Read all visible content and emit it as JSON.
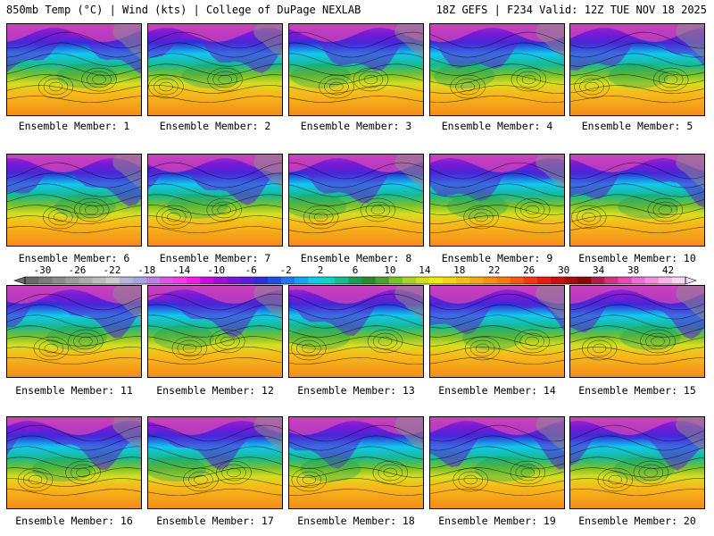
{
  "header": {
    "left": "850mb Temp (°C) | Wind (kts) | College of DuPage NEXLAB",
    "right": "18Z GEFS | F234 Valid: 12Z TUE NOV 18 2025"
  },
  "chart_data": {
    "type": "small-multiples-heatmap",
    "title": "850mb Temp (°C) | Wind (kts)",
    "source": "College of DuPage NEXLAB",
    "model": "18Z GEFS",
    "forecast": "F234 Valid: 12Z TUE NOV 18 2025",
    "panels": [
      {
        "label": "Ensemble Member: 1"
      },
      {
        "label": "Ensemble Member: 2"
      },
      {
        "label": "Ensemble Member: 3"
      },
      {
        "label": "Ensemble Member: 4"
      },
      {
        "label": "Ensemble Member: 5"
      },
      {
        "label": "Ensemble Member: 6"
      },
      {
        "label": "Ensemble Member: 7"
      },
      {
        "label": "Ensemble Member: 8"
      },
      {
        "label": "Ensemble Member: 9"
      },
      {
        "label": "Ensemble Member: 10"
      },
      {
        "label": "Ensemble Member: 11"
      },
      {
        "label": "Ensemble Member: 12"
      },
      {
        "label": "Ensemble Member: 13"
      },
      {
        "label": "Ensemble Member: 14"
      },
      {
        "label": "Ensemble Member: 15"
      },
      {
        "label": "Ensemble Member: 16"
      },
      {
        "label": "Ensemble Member: 17"
      },
      {
        "label": "Ensemble Member: 18"
      },
      {
        "label": "Ensemble Member: 19"
      },
      {
        "label": "Ensemble Member: 20"
      }
    ],
    "colorbar": {
      "ticks": [
        "-30",
        "-26",
        "-22",
        "-18",
        "-14",
        "-10",
        "-6",
        "-2",
        "2",
        "6",
        "10",
        "14",
        "18",
        "22",
        "26",
        "30",
        "34",
        "38",
        "42"
      ],
      "range": [
        -32,
        44
      ],
      "step": 2,
      "colors": [
        "#6a6a6a",
        "#7b7b7b",
        "#8c8c8c",
        "#9c9c9c",
        "#adadad",
        "#bcbcbc",
        "#cdcdcd",
        "#b6b6dd",
        "#a6a6e6",
        "#c07fe6",
        "#da55e6",
        "#ec3ce8",
        "#f01fe6",
        "#c90fd9",
        "#a011d4",
        "#7b17d3",
        "#5c1fd6",
        "#2e2fd8",
        "#1f4fe0",
        "#1f79ea",
        "#16a4ef",
        "#12c8ef",
        "#10d2c6",
        "#18b890",
        "#1a9f56",
        "#2c8a2a",
        "#4ea228",
        "#7cc12a",
        "#a9d22a",
        "#d6de22",
        "#f4e81a",
        "#f6d21a",
        "#f6bc1a",
        "#f6a61a",
        "#f58f1a",
        "#f47a18",
        "#f25a16",
        "#ee3a14",
        "#e61d12",
        "#c81210",
        "#a60d0d",
        "#8a0a0a",
        "#ad1f4c",
        "#cc3684",
        "#e24db5",
        "#f06cd2",
        "#f68ee0",
        "#fab4ec",
        "#fcd6f4"
      ]
    }
  }
}
